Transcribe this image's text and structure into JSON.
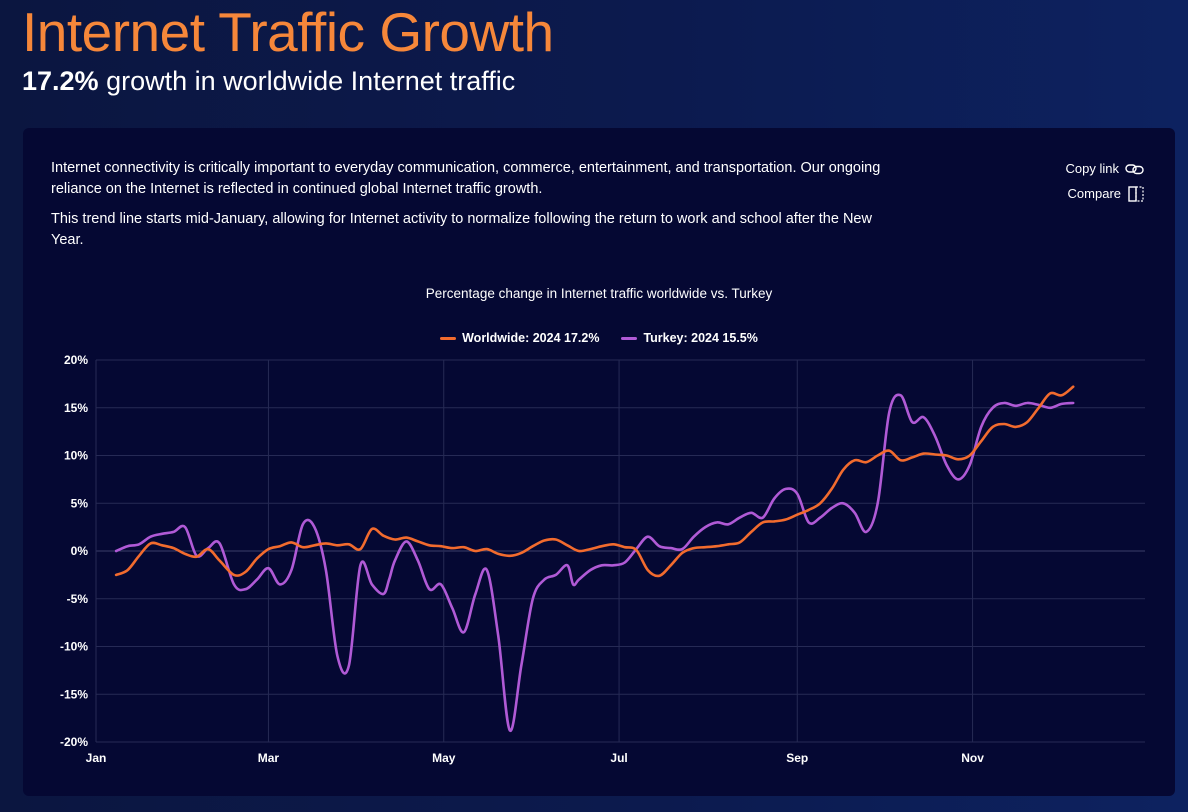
{
  "header": {
    "title": "Internet Traffic Growth",
    "subtitle_pct": "17.2%",
    "subtitle_text": " growth in worldwide Internet traffic"
  },
  "card": {
    "paragraph1": "Internet connectivity is critically important to everyday communication, commerce, entertainment, and transportation. Our ongoing reliance on the Internet is reflected in continued global Internet traffic growth.",
    "paragraph2": "This trend line starts mid-January, allowing for Internet activity to normalize following the return to work and school after the New Year.",
    "copy_link_label": "Copy link",
    "compare_label": "Compare"
  },
  "colors": {
    "worldwide": "#f26b2e",
    "turkey": "#b05ad6",
    "title_accent": "#f6873a",
    "grid": "#262a55"
  },
  "chart_data": {
    "type": "line",
    "title": "Percentage change in Internet traffic worldwide vs. Turkey",
    "x_axis": "date",
    "x_range": [
      "2024-01-01",
      "2024-12-31"
    ],
    "x_ticks": [
      "Jan",
      "Mar",
      "May",
      "Jul",
      "Sep",
      "Nov"
    ],
    "y_ticks": [
      "20%",
      "15%",
      "10%",
      "5%",
      "0%",
      "-5%",
      "-10%",
      "-15%",
      "-20%"
    ],
    "ylim": [
      -20,
      20
    ],
    "grid": true,
    "legend_position": "top-center",
    "series": [
      {
        "name": "Worldwide: 2024 17.2%",
        "x": [
          "2024-01-08",
          "2024-01-12",
          "2024-01-16",
          "2024-01-20",
          "2024-01-24",
          "2024-01-28",
          "2024-02-01",
          "2024-02-05",
          "2024-02-09",
          "2024-02-13",
          "2024-02-18",
          "2024-02-22",
          "2024-02-26",
          "2024-03-01",
          "2024-03-05",
          "2024-03-09",
          "2024-03-13",
          "2024-03-17",
          "2024-03-21",
          "2024-03-25",
          "2024-03-29",
          "2024-04-02",
          "2024-04-06",
          "2024-04-10",
          "2024-04-14",
          "2024-04-18",
          "2024-04-22",
          "2024-04-26",
          "2024-04-30",
          "2024-05-04",
          "2024-05-08",
          "2024-05-12",
          "2024-05-16",
          "2024-05-20",
          "2024-05-24",
          "2024-05-28",
          "2024-06-01",
          "2024-06-05",
          "2024-06-09",
          "2024-06-13",
          "2024-06-17",
          "2024-06-21",
          "2024-06-25",
          "2024-06-29",
          "2024-07-03",
          "2024-07-07",
          "2024-07-11",
          "2024-07-15",
          "2024-07-19",
          "2024-07-23",
          "2024-07-27",
          "2024-07-31",
          "2024-08-04",
          "2024-08-08",
          "2024-08-12",
          "2024-08-16",
          "2024-08-20",
          "2024-08-24",
          "2024-08-28",
          "2024-09-01",
          "2024-09-05",
          "2024-09-09",
          "2024-09-13",
          "2024-09-17",
          "2024-09-21",
          "2024-09-25",
          "2024-09-29",
          "2024-10-03",
          "2024-10-07",
          "2024-10-11",
          "2024-10-15",
          "2024-10-19",
          "2024-10-23",
          "2024-10-27",
          "2024-10-31",
          "2024-11-04",
          "2024-11-08",
          "2024-11-12",
          "2024-11-16",
          "2024-11-20",
          "2024-11-24",
          "2024-11-28",
          "2024-12-02",
          "2024-12-06"
        ],
        "values": [
          -2.5,
          -2.0,
          -0.5,
          0.8,
          0.6,
          0.3,
          -0.3,
          -0.6,
          0.2,
          -1.0,
          -2.5,
          -2.2,
          -0.8,
          0.2,
          0.5,
          0.9,
          0.4,
          0.6,
          0.8,
          0.6,
          0.7,
          0.2,
          2.3,
          1.6,
          1.2,
          1.4,
          1.0,
          0.6,
          0.5,
          0.3,
          0.4,
          0.0,
          0.2,
          -0.3,
          -0.5,
          -0.2,
          0.5,
          1.1,
          1.2,
          0.6,
          0.0,
          0.2,
          0.5,
          0.7,
          0.4,
          0.1,
          -2.0,
          -2.6,
          -1.5,
          -0.2,
          0.3,
          0.4,
          0.5,
          0.7,
          0.9,
          2.0,
          3.0,
          3.1,
          3.3,
          3.8,
          4.3,
          5.0,
          6.5,
          8.5,
          9.5,
          9.3,
          10.0,
          10.5,
          9.5,
          9.8,
          10.2,
          10.1,
          10.0,
          9.6,
          10.0,
          11.5,
          13.0,
          13.3,
          13.0,
          13.5,
          15.0,
          16.5,
          16.3,
          17.2
        ]
      },
      {
        "name": "Turkey: 2024 15.5%",
        "x": [
          "2024-01-08",
          "2024-01-12",
          "2024-01-16",
          "2024-01-20",
          "2024-01-24",
          "2024-01-28",
          "2024-02-01",
          "2024-02-05",
          "2024-02-09",
          "2024-02-13",
          "2024-02-18",
          "2024-02-22",
          "2024-02-26",
          "2024-03-01",
          "2024-03-05",
          "2024-03-09",
          "2024-03-13",
          "2024-03-17",
          "2024-03-21",
          "2024-03-25",
          "2024-03-29",
          "2024-04-02",
          "2024-04-06",
          "2024-04-10",
          "2024-04-12",
          "2024-04-14",
          "2024-04-18",
          "2024-04-22",
          "2024-04-26",
          "2024-04-30",
          "2024-05-04",
          "2024-05-08",
          "2024-05-12",
          "2024-05-16",
          "2024-05-20",
          "2024-05-24",
          "2024-05-28",
          "2024-06-01",
          "2024-06-05",
          "2024-06-09",
          "2024-06-13",
          "2024-06-15",
          "2024-06-17",
          "2024-06-21",
          "2024-06-25",
          "2024-06-29",
          "2024-07-03",
          "2024-07-07",
          "2024-07-11",
          "2024-07-15",
          "2024-07-19",
          "2024-07-23",
          "2024-07-27",
          "2024-07-31",
          "2024-08-04",
          "2024-08-08",
          "2024-08-12",
          "2024-08-16",
          "2024-08-20",
          "2024-08-24",
          "2024-08-28",
          "2024-09-01",
          "2024-09-05",
          "2024-09-09",
          "2024-09-13",
          "2024-09-17",
          "2024-09-21",
          "2024-09-25",
          "2024-09-29",
          "2024-10-03",
          "2024-10-07",
          "2024-10-11",
          "2024-10-15",
          "2024-10-19",
          "2024-10-23",
          "2024-10-27",
          "2024-10-31",
          "2024-11-04",
          "2024-11-08",
          "2024-11-12",
          "2024-11-16",
          "2024-11-20",
          "2024-11-24",
          "2024-11-28",
          "2024-12-02",
          "2024-12-06"
        ],
        "values": [
          0.0,
          0.5,
          0.7,
          1.5,
          1.8,
          2.0,
          2.5,
          -0.5,
          0.3,
          0.8,
          -3.5,
          -4.0,
          -3.0,
          -1.8,
          -3.5,
          -2.0,
          2.8,
          2.5,
          -2.0,
          -11.0,
          -12.0,
          -1.5,
          -3.5,
          -4.5,
          -3.0,
          -1.0,
          1.0,
          -1.0,
          -4.0,
          -3.5,
          -6.0,
          -8.5,
          -4.5,
          -2.0,
          -9.0,
          -18.8,
          -12.0,
          -5.0,
          -3.0,
          -2.5,
          -1.5,
          -3.5,
          -3.0,
          -2.0,
          -1.5,
          -1.5,
          -1.2,
          0.2,
          1.5,
          0.5,
          0.3,
          0.2,
          1.5,
          2.5,
          3.0,
          2.8,
          3.5,
          4.0,
          3.5,
          5.5,
          6.5,
          6.0,
          3.0,
          3.5,
          4.5,
          5.0,
          4.0,
          2.0,
          5.0,
          14.5,
          16.3,
          13.5,
          14.0,
          12.0,
          9.0,
          7.5,
          9.0,
          13.0,
          15.0,
          15.5,
          15.2,
          15.5,
          15.3,
          15.0,
          15.4,
          15.5
        ]
      }
    ]
  }
}
